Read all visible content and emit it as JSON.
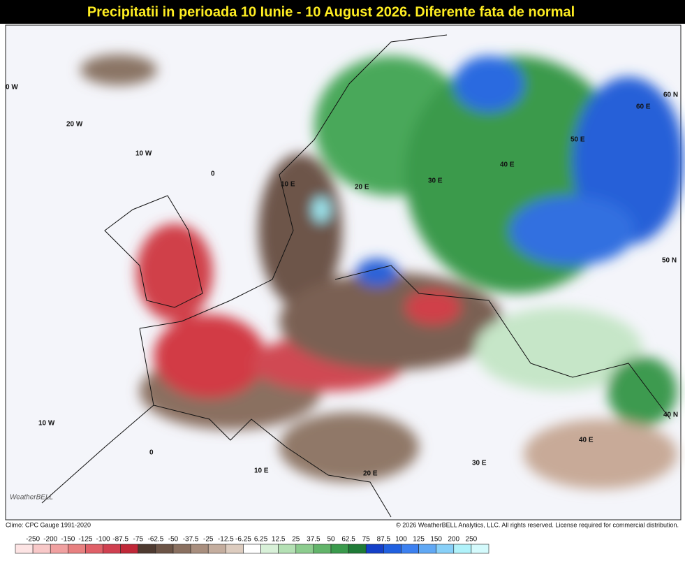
{
  "title": "Precipitatii in perioada 10 Iunie - 10 August 2026. Diferente fata de normal",
  "grid_labels": [
    {
      "text": "0 W"
    },
    {
      "text": "20 W"
    },
    {
      "text": "10 W"
    },
    {
      "text": "0"
    },
    {
      "text": "10 E"
    },
    {
      "text": "20 E"
    },
    {
      "text": "30 E"
    },
    {
      "text": "40 E"
    },
    {
      "text": "50 E"
    },
    {
      "text": "60 E"
    },
    {
      "text": "60 N"
    },
    {
      "text": "50 N"
    },
    {
      "text": "40 N"
    },
    {
      "text": "10 W"
    },
    {
      "text": "0"
    },
    {
      "text": "10 E"
    },
    {
      "text": "20 E"
    },
    {
      "text": "30 E"
    },
    {
      "text": "40 E"
    }
  ],
  "logo": "WeatherBELL",
  "footer": {
    "climo": "Climo: CPC Gauge 1991-2020",
    "copyright": "© 2026 WeatherBELL Analytics, LLC. All rights reserved. License required for commercial distribution."
  },
  "legend": [
    "-250",
    "-200",
    "-150",
    "-125",
    "-100",
    "-87.5",
    "-75",
    "-62.5",
    "-50",
    "-37.5",
    "-25",
    "-12.5",
    "-6.25",
    "6.25",
    "12.5",
    "25",
    "37.5",
    "50",
    "62.5",
    "75",
    "87.5",
    "100",
    "125",
    "150",
    "200",
    "250"
  ]
}
